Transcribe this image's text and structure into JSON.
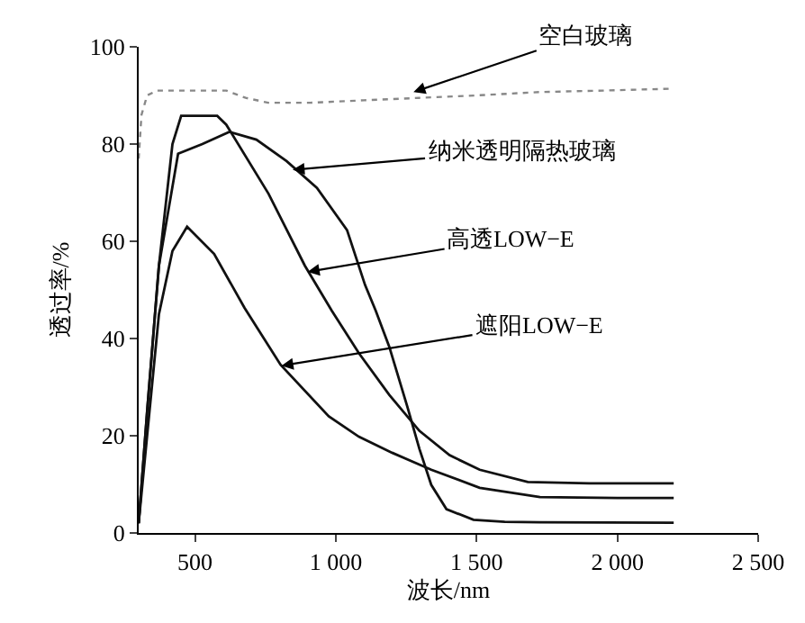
{
  "chart_data": {
    "type": "line",
    "xlabel": "波长/nm",
    "ylabel": "透过率/%",
    "xlim": [
      300,
      2500
    ],
    "ylim": [
      0,
      100
    ],
    "xticks": [
      500,
      {
        "value": 1000,
        "label": "1 000"
      },
      {
        "value": 1500,
        "label": "1 500"
      },
      {
        "value": 2000,
        "label": "2 000"
      },
      {
        "value": 2500,
        "label": "2 500"
      }
    ],
    "yticks": [
      0,
      20,
      40,
      60,
      80,
      100
    ],
    "grid": false,
    "marker": "none",
    "series": [
      {
        "color": "#888888",
        "line_style": "dotted",
        "x": [
          300,
          310,
          330,
          365,
          450,
          611,
          680,
          760,
          910,
          1100,
          1297,
          1500,
          1725,
          1950,
          2200
        ],
        "values": [
          77,
          86,
          90,
          91,
          91,
          91,
          89.5,
          88.5,
          88.5,
          89,
          89.5,
          90,
          90.7,
          91,
          91.4
        ]
      },
      {
        "color": "#111111",
        "line_style": "solid",
        "x": [
          300,
          330,
          372,
          440,
          526,
          622,
          718,
          825,
          933,
          1040,
          1104,
          1142,
          1190,
          1254,
          1297,
          1339,
          1393,
          1489,
          1600,
          1725,
          2200
        ],
        "values": [
          2,
          25,
          55,
          78,
          80,
          82.5,
          80.9,
          76.5,
          71,
          62.3,
          51,
          45.7,
          38.3,
          26,
          17.3,
          9.9,
          4.9,
          2.7,
          2.3,
          2.2,
          2.1
        ]
      },
      {
        "color": "#111111",
        "line_style": "solid",
        "x": [
          300,
          330,
          372,
          420,
          451,
          579,
          611,
          761,
          890,
          986,
          1082,
          1190,
          1297,
          1404,
          1511,
          1682,
          1900,
          2200
        ],
        "values": [
          2,
          25,
          55,
          80,
          85.8,
          85.8,
          84,
          69.8,
          55,
          45.7,
          37,
          28.4,
          21,
          16,
          13,
          10.5,
          10.2,
          10.2
        ]
      },
      {
        "color": "#111111",
        "line_style": "solid",
        "x": [
          300,
          330,
          372,
          420,
          472,
          568,
          676,
          804,
          975,
          1082,
          1200,
          1339,
          1511,
          1725,
          2000,
          2200
        ],
        "values": [
          2,
          20,
          45,
          58,
          63,
          57.4,
          46.3,
          34.6,
          24,
          19.8,
          16.5,
          13,
          9.3,
          7.4,
          7.2,
          7.2
        ]
      }
    ],
    "annotations": [
      {
        "text": "空白玻璃",
        "x": 1276,
        "y": 90.7
      },
      {
        "text": "纳米透明隔热玻璃",
        "x": 847,
        "y": 74.7
      },
      {
        "text": "高透LOW−E",
        "x": 900,
        "y": 53.7
      },
      {
        "text": "遮阳LOW−E",
        "x": 807,
        "y": 34.4
      }
    ]
  }
}
